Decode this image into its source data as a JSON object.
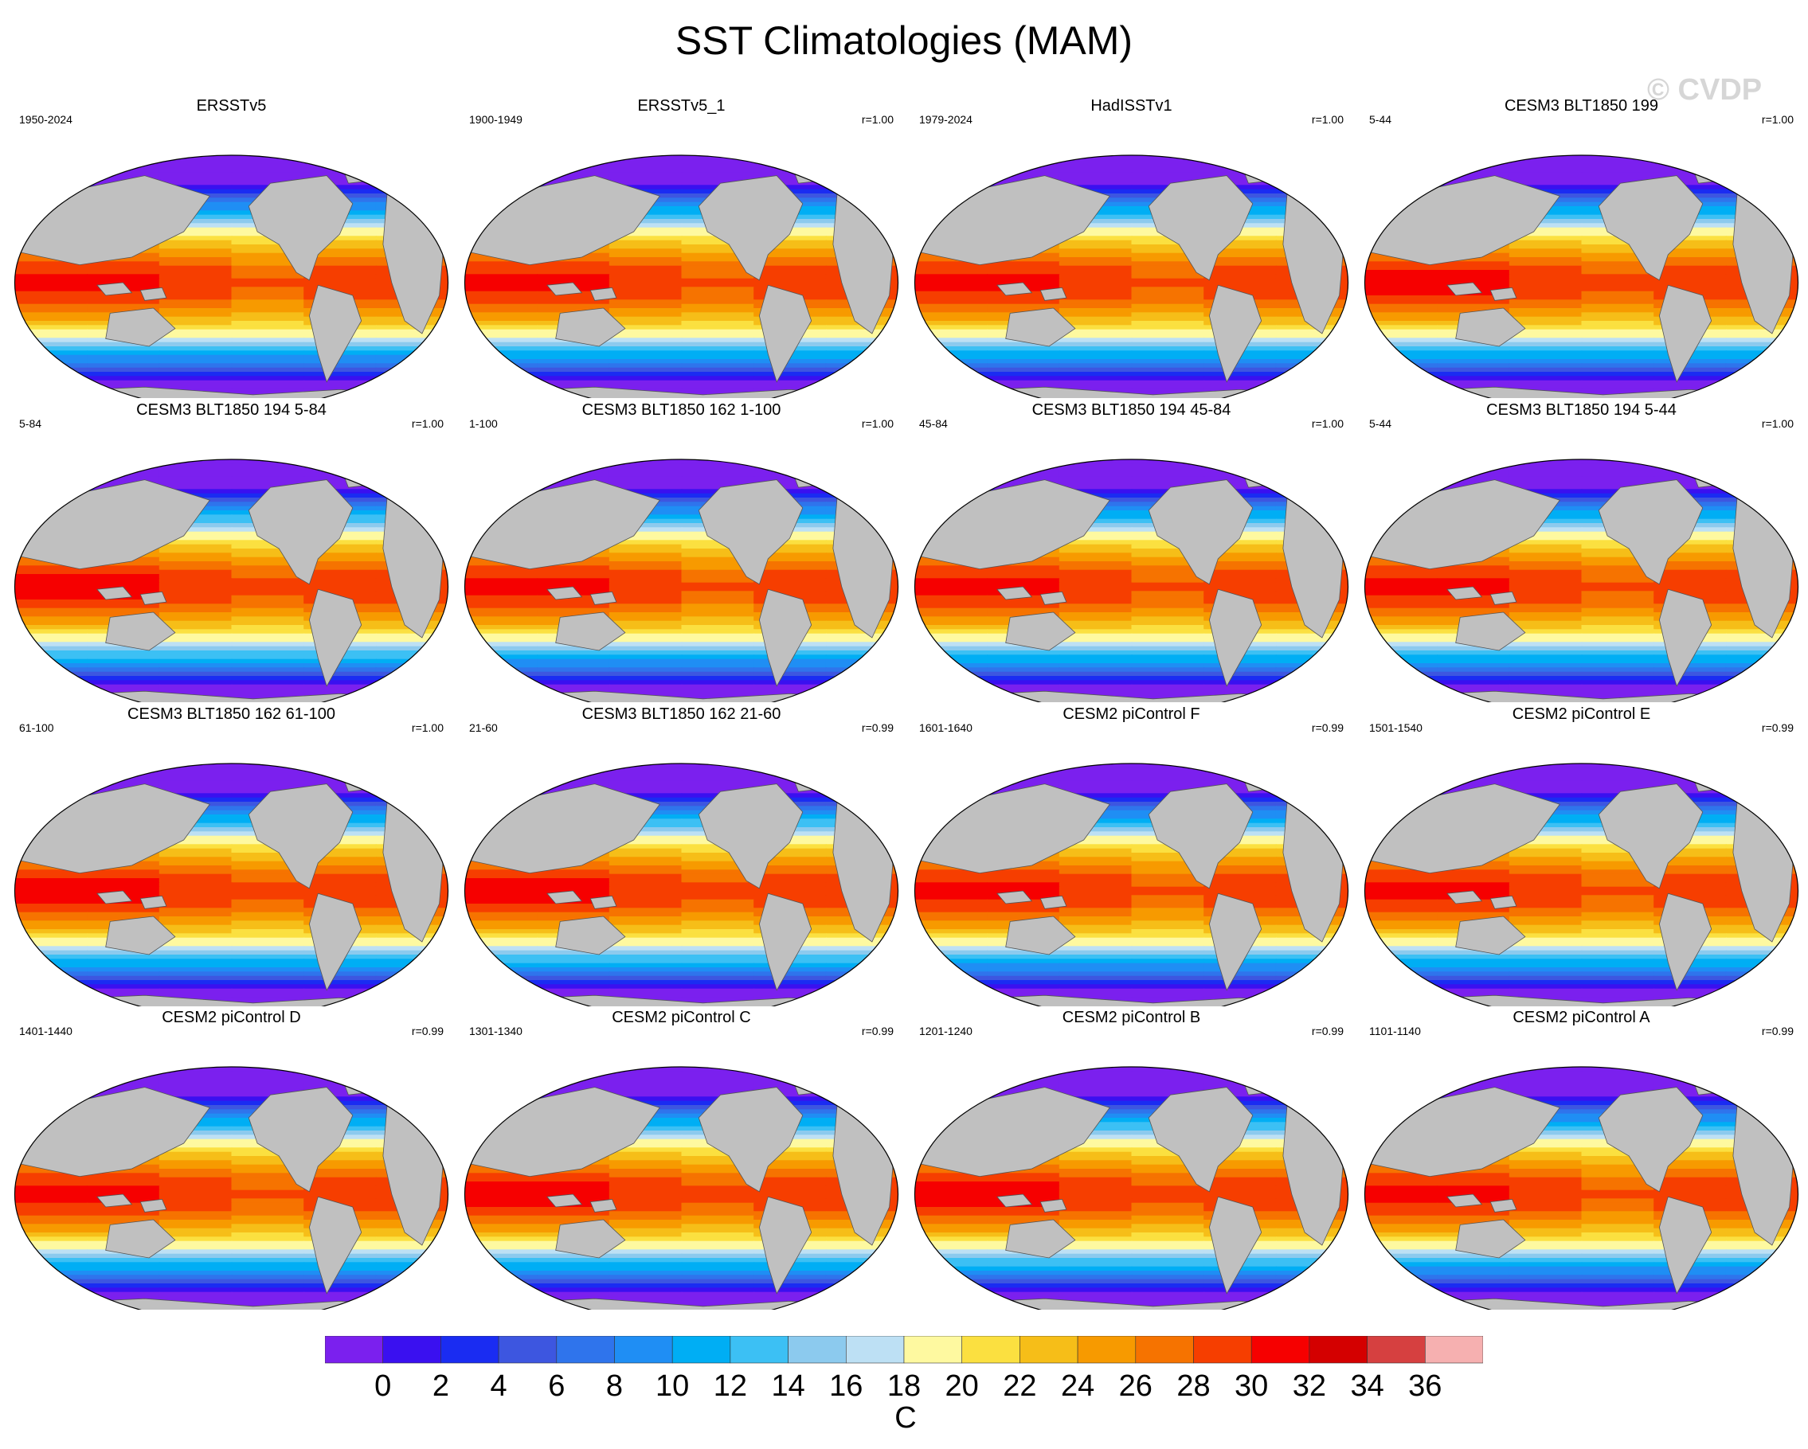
{
  "chart_data": {
    "type": "heatmap",
    "title": "SST Climatologies (MAM)",
    "watermark": "© CVDP",
    "units": "C",
    "colorbar": {
      "levels": [
        0,
        2,
        4,
        6,
        8,
        10,
        12,
        14,
        16,
        18,
        20,
        22,
        24,
        26,
        28,
        30,
        32,
        34,
        36
      ],
      "tick_labels": [
        "0",
        "2",
        "4",
        "6",
        "8",
        "10",
        "12",
        "14",
        "16",
        "18",
        "20",
        "22",
        "24",
        "26",
        "28",
        "30",
        "32",
        "34",
        "36"
      ],
      "colors": [
        "#7b20ee",
        "#3a10f0",
        "#1a2cf2",
        "#3d56e0",
        "#2f74ec",
        "#1f8ef4",
        "#00aef4",
        "#3cc0f4",
        "#8ccaee",
        "#bde0f4",
        "#fef9a0",
        "#fbe040",
        "#f6be18",
        "#f79a00",
        "#f67300",
        "#f63e00",
        "#f60000",
        "#d40000",
        "#d64040",
        "#f6b0b0"
      ]
    },
    "panels": [
      {
        "title": "ERSSTv5",
        "years": "1950-2024",
        "r": ""
      },
      {
        "title": "ERSSTv5_1",
        "years": "1900-1949",
        "r": "r=1.00"
      },
      {
        "title": "HadISSTv1",
        "years": "1979-2024",
        "r": "r=1.00"
      },
      {
        "title": "CESM3 BLT1850 199",
        "years": "5-44",
        "r": "r=1.00"
      },
      {
        "title": "CESM3 BLT1850 194 5-84",
        "years": "5-84",
        "r": "r=1.00"
      },
      {
        "title": "CESM3 BLT1850 162 1-100",
        "years": "1-100",
        "r": "r=1.00"
      },
      {
        "title": "CESM3 BLT1850 194 45-84",
        "years": "45-84",
        "r": "r=1.00"
      },
      {
        "title": "CESM3 BLT1850 194 5-44",
        "years": "5-44",
        "r": "r=1.00"
      },
      {
        "title": "CESM3 BLT1850 162 61-100",
        "years": "61-100",
        "r": "r=1.00"
      },
      {
        "title": "CESM3 BLT1850 162 21-60",
        "years": "21-60",
        "r": "r=0.99"
      },
      {
        "title": "CESM2 piControl F",
        "years": "1601-1640",
        "r": "r=0.99"
      },
      {
        "title": "CESM2 piControl E",
        "years": "1501-1540",
        "r": "r=0.99"
      },
      {
        "title": "CESM2 piControl D",
        "years": "1401-1440",
        "r": "r=0.99"
      },
      {
        "title": "CESM2 piControl C",
        "years": "1301-1340",
        "r": "r=0.99"
      },
      {
        "title": "CESM2 piControl B",
        "years": "1201-1240",
        "r": "r=0.99"
      },
      {
        "title": "CESM2 piControl A",
        "years": "1101-1140",
        "r": "r=0.99"
      }
    ]
  }
}
